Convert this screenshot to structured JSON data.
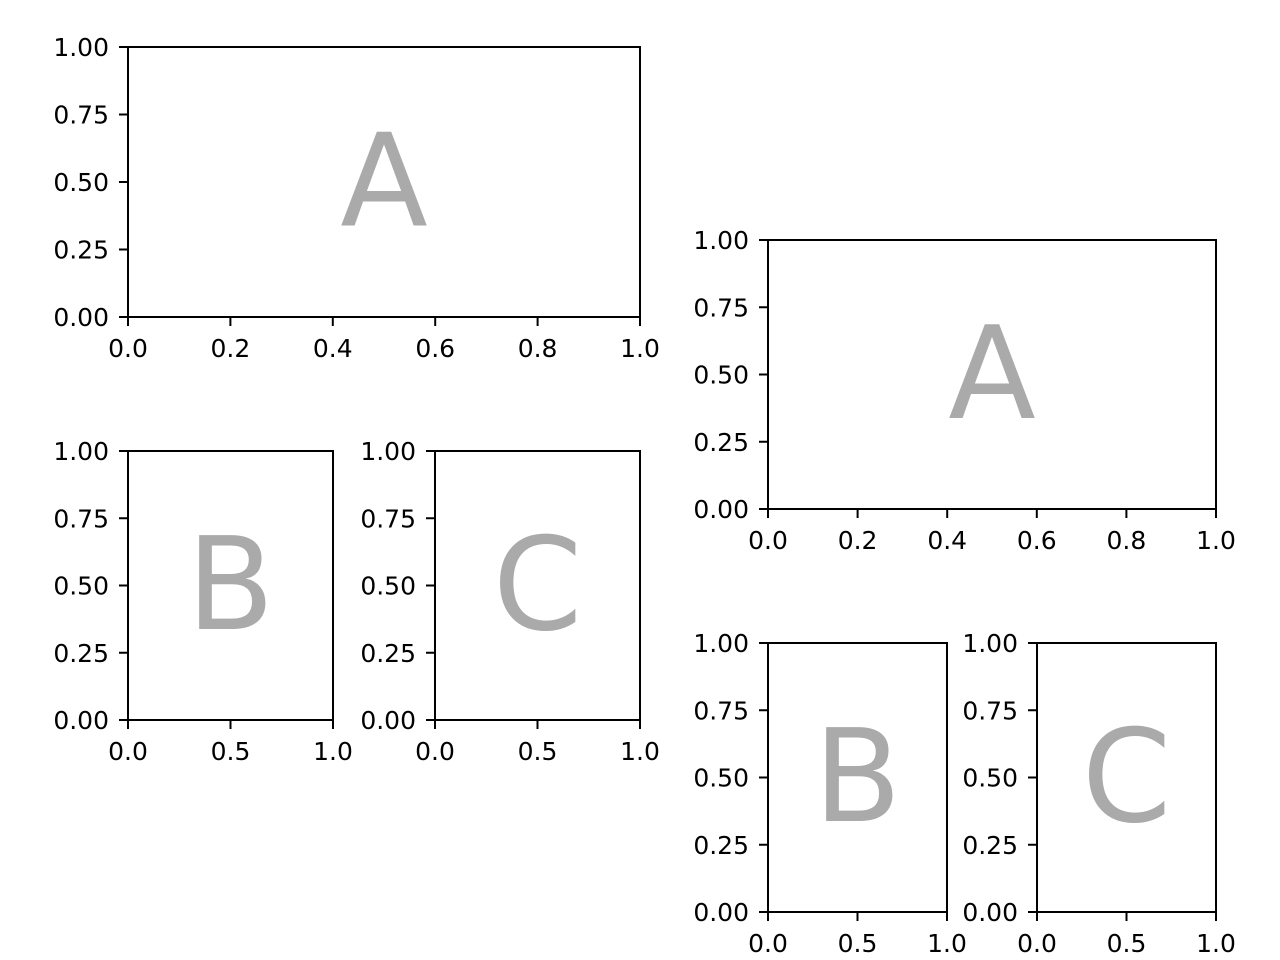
{
  "colors": {
    "frame": "#000000",
    "letter": "#aaaaaa",
    "background": "#ffffff"
  },
  "chart_data": [
    {
      "type": "empty",
      "letter": "A",
      "xlim": [
        0,
        1
      ],
      "ylim": [
        0,
        1
      ],
      "xticks": [
        "0.0",
        "0.2",
        "0.4",
        "0.6",
        "0.8",
        "1.0"
      ],
      "yticks": [
        "0.00",
        "0.25",
        "0.50",
        "0.75",
        "1.00"
      ],
      "grid": false
    },
    {
      "type": "empty",
      "letter": "B",
      "xlim": [
        0,
        1
      ],
      "ylim": [
        0,
        1
      ],
      "xticks": [
        "0.0",
        "0.5",
        "1.0"
      ],
      "yticks": [
        "0.00",
        "0.25",
        "0.50",
        "0.75",
        "1.00"
      ],
      "grid": false
    },
    {
      "type": "empty",
      "letter": "C",
      "xlim": [
        0,
        1
      ],
      "ylim": [
        0,
        1
      ],
      "xticks": [
        "0.0",
        "0.5",
        "1.0"
      ],
      "yticks": [
        "0.00",
        "0.25",
        "0.50",
        "0.75",
        "1.00"
      ],
      "grid": false
    },
    {
      "type": "empty",
      "letter": "A",
      "xlim": [
        0,
        1
      ],
      "ylim": [
        0,
        1
      ],
      "xticks": [
        "0.0",
        "0.2",
        "0.4",
        "0.6",
        "0.8",
        "1.0"
      ],
      "yticks": [
        "0.00",
        "0.25",
        "0.50",
        "0.75",
        "1.00"
      ],
      "grid": false
    },
    {
      "type": "empty",
      "letter": "B",
      "xlim": [
        0,
        1
      ],
      "ylim": [
        0,
        1
      ],
      "xticks": [
        "0.0",
        "0.5",
        "1.0"
      ],
      "yticks": [
        "0.00",
        "0.25",
        "0.50",
        "0.75",
        "1.00"
      ],
      "grid": false
    },
    {
      "type": "empty",
      "letter": "C",
      "xlim": [
        0,
        1
      ],
      "ylim": [
        0,
        1
      ],
      "xticks": [
        "0.0",
        "0.5",
        "1.0"
      ],
      "yticks": [
        "0.00",
        "0.25",
        "0.50",
        "0.75",
        "1.00"
      ],
      "grid": false
    }
  ]
}
